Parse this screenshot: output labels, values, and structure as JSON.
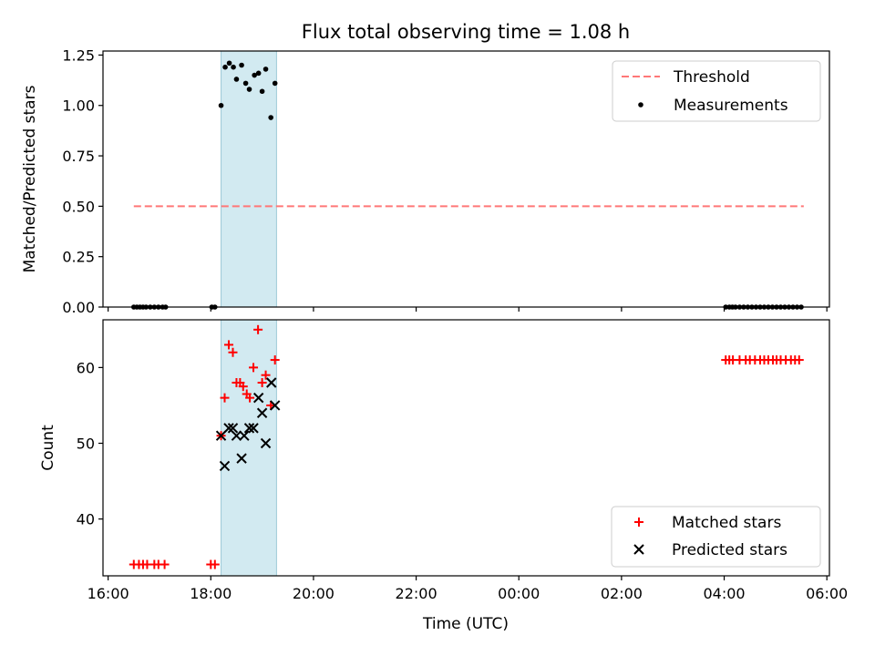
{
  "chart_data": {
    "title": "Flux total observing time = 1.08 h",
    "xlabel": "Time (UTC)",
    "x_unit": "hours since 16:00 UTC (dates cross midnight)",
    "xlim": [
      15.9,
      30.05
    ],
    "xticks": [
      {
        "x": 16,
        "label": "16:00"
      },
      {
        "x": 18,
        "label": "18:00"
      },
      {
        "x": 20,
        "label": "20:00"
      },
      {
        "x": 22,
        "label": "22:00"
      },
      {
        "x": 24,
        "label": "00:00"
      },
      {
        "x": 26,
        "label": "02:00"
      },
      {
        "x": 28,
        "label": "04:00"
      },
      {
        "x": 30,
        "label": "06:00"
      }
    ],
    "shaded_interval": {
      "from": 18.2,
      "to": 19.28,
      "color": "#add8e6"
    },
    "panels": [
      {
        "type": "scatter",
        "ylabel": "Matched/Predicted stars",
        "ylim": [
          0,
          1.27
        ],
        "yticks": [
          "0.00",
          "0.25",
          "0.50",
          "0.75",
          "1.00",
          "1.25"
        ],
        "threshold": {
          "name": "Threshold",
          "y": 0.5,
          "x_from": 16.5,
          "x_to": 29.55,
          "color": "#ff7777"
        },
        "series": [
          {
            "name": "Measurements",
            "color": "#000000",
            "points": [
              [
                16.5,
                0
              ],
              [
                16.56,
                0
              ],
              [
                16.62,
                0
              ],
              [
                16.68,
                0
              ],
              [
                16.74,
                0
              ],
              [
                16.82,
                0
              ],
              [
                16.9,
                0
              ],
              [
                16.98,
                0
              ],
              [
                17.06,
                0
              ],
              [
                17.12,
                0
              ],
              [
                18.02,
                0
              ],
              [
                18.08,
                0
              ],
              [
                18.2,
                1.0
              ],
              [
                18.28,
                1.19
              ],
              [
                18.36,
                1.21
              ],
              [
                18.44,
                1.19
              ],
              [
                18.5,
                1.13
              ],
              [
                18.6,
                1.2
              ],
              [
                18.68,
                1.11
              ],
              [
                18.75,
                1.08
              ],
              [
                18.85,
                1.15
              ],
              [
                18.93,
                1.16
              ],
              [
                19.0,
                1.07
              ],
              [
                19.07,
                1.18
              ],
              [
                19.17,
                0.94
              ],
              [
                19.25,
                1.11
              ],
              [
                28.03,
                0
              ],
              [
                28.1,
                0
              ],
              [
                28.16,
                0
              ],
              [
                28.22,
                0
              ],
              [
                28.3,
                0
              ],
              [
                28.38,
                0
              ],
              [
                28.46,
                0
              ],
              [
                28.54,
                0
              ],
              [
                28.62,
                0
              ],
              [
                28.7,
                0
              ],
              [
                28.78,
                0
              ],
              [
                28.86,
                0
              ],
              [
                28.94,
                0
              ],
              [
                29.02,
                0
              ],
              [
                29.1,
                0
              ],
              [
                29.18,
                0
              ],
              [
                29.26,
                0
              ],
              [
                29.34,
                0
              ],
              [
                29.42,
                0
              ],
              [
                29.5,
                0
              ]
            ]
          }
        ],
        "legend": [
          "Threshold",
          "Measurements"
        ],
        "legend_position": "top-right"
      },
      {
        "type": "scatter",
        "ylabel": "Count",
        "ylim": [
          32.5,
          66.3
        ],
        "yticks": [
          "40",
          "50",
          "60"
        ],
        "series": [
          {
            "name": "Matched stars",
            "marker": "+",
            "color": "#ff0000",
            "points": [
              [
                16.5,
                34
              ],
              [
                16.6,
                34
              ],
              [
                16.68,
                34
              ],
              [
                16.76,
                34
              ],
              [
                16.9,
                34
              ],
              [
                16.98,
                34
              ],
              [
                17.1,
                34
              ],
              [
                18.0,
                34
              ],
              [
                18.08,
                34
              ],
              [
                18.2,
                51
              ],
              [
                18.27,
                56
              ],
              [
                18.35,
                63
              ],
              [
                18.43,
                62
              ],
              [
                18.5,
                58
              ],
              [
                18.57,
                58
              ],
              [
                18.63,
                57.5
              ],
              [
                18.7,
                56.5
              ],
              [
                18.76,
                56
              ],
              [
                18.83,
                60
              ],
              [
                18.92,
                65
              ],
              [
                19.0,
                58
              ],
              [
                19.07,
                59
              ],
              [
                19.17,
                55
              ],
              [
                19.25,
                61
              ],
              [
                28.03,
                61
              ],
              [
                28.1,
                61
              ],
              [
                28.17,
                61
              ],
              [
                28.3,
                61
              ],
              [
                28.42,
                61
              ],
              [
                28.5,
                61
              ],
              [
                28.6,
                61
              ],
              [
                28.7,
                61
              ],
              [
                28.78,
                61
              ],
              [
                28.86,
                61
              ],
              [
                28.95,
                61
              ],
              [
                29.02,
                61
              ],
              [
                29.1,
                61
              ],
              [
                29.2,
                61
              ],
              [
                29.3,
                61
              ],
              [
                29.38,
                61
              ],
              [
                29.46,
                61
              ]
            ]
          },
          {
            "name": "Predicted stars",
            "marker": "x",
            "color": "#000000",
            "points": [
              [
                18.2,
                51
              ],
              [
                18.27,
                47
              ],
              [
                18.35,
                52
              ],
              [
                18.43,
                52
              ],
              [
                18.5,
                51
              ],
              [
                18.6,
                48
              ],
              [
                18.65,
                51
              ],
              [
                18.75,
                52
              ],
              [
                18.83,
                52
              ],
              [
                18.93,
                56
              ],
              [
                19.0,
                54
              ],
              [
                19.07,
                50
              ],
              [
                19.18,
                58
              ],
              [
                19.25,
                55
              ]
            ]
          }
        ],
        "legend": [
          "Matched stars",
          "Predicted stars"
        ],
        "legend_position": "bottom-right"
      }
    ]
  }
}
